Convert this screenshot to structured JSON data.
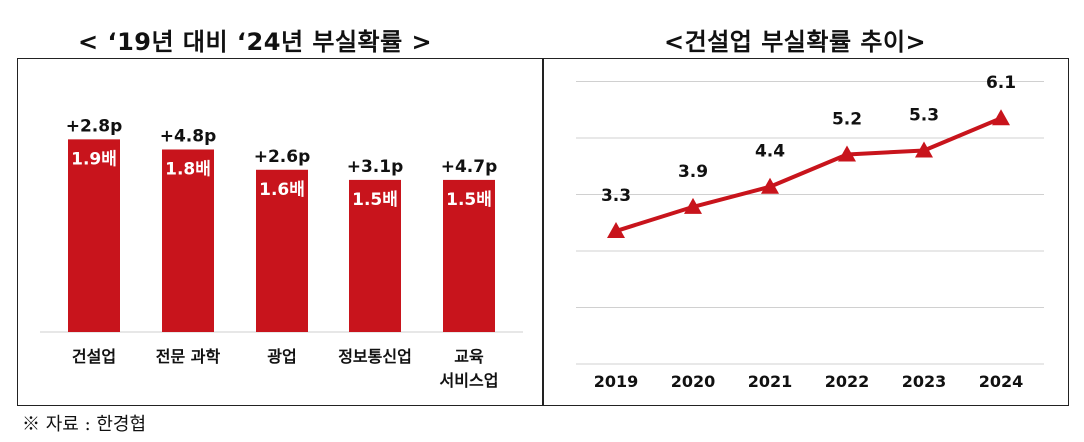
{
  "titles": {
    "left": "< ‘19년 대비 ‘24년 부실확률 >",
    "right": "<건설업 부실확률 추이>"
  },
  "source": "※ 자료 : 한경협",
  "colors": {
    "bar": "#c8141c",
    "line": "#c8141c",
    "grid": "#d0d0d0",
    "text": "#111111"
  },
  "chart_data": [
    {
      "type": "bar",
      "title": "< ‘19년 대비 ‘24년 부실확률 >",
      "categories": [
        [
          "건설업"
        ],
        [
          "전문 과학"
        ],
        [
          "광업"
        ],
        [
          "정보통신업"
        ],
        [
          "교육",
          "서비스업"
        ]
      ],
      "values": [
        1.9,
        1.8,
        1.6,
        1.5,
        1.5
      ],
      "value_labels": [
        "1.9배",
        "1.8배",
        "1.6배",
        "1.5배",
        "1.5배"
      ],
      "change_labels": [
        "+2.8p",
        "+4.8p",
        "+2.6p",
        "+3.1p",
        "+4.7p"
      ],
      "ylim": [
        0,
        2.15
      ],
      "grid": false
    },
    {
      "type": "line",
      "title": "<건설업 부실확률 추이>",
      "x": [
        "2019",
        "2020",
        "2021",
        "2022",
        "2023",
        "2024"
      ],
      "series": [
        {
          "name": "건설업 부실확률",
          "values": [
            3.3,
            3.9,
            4.4,
            5.2,
            5.3,
            6.1
          ]
        }
      ],
      "value_labels": [
        "3.3",
        "3.9",
        "4.4",
        "5.2",
        "5.3",
        "6.1"
      ],
      "ylim": [
        0,
        6.95
      ],
      "grid": true
    }
  ]
}
